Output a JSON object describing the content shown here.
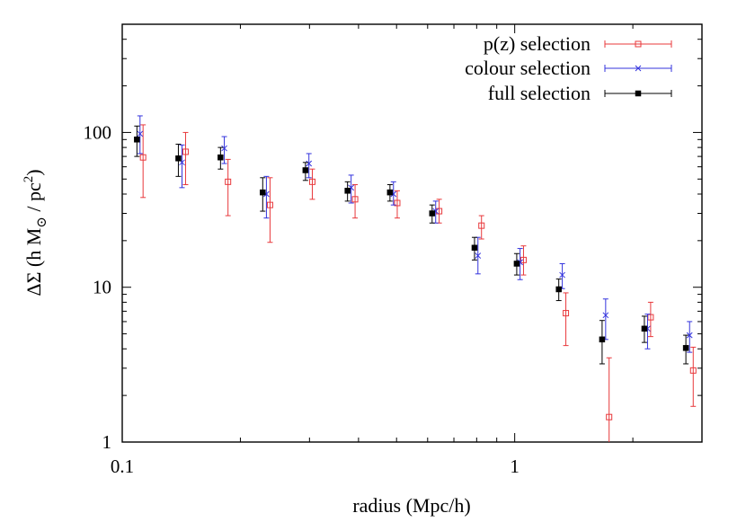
{
  "chart_data": {
    "type": "scatter",
    "x_scale": "log",
    "y_scale": "log",
    "xlim": [
      0.1,
      3.0
    ],
    "ylim": [
      1,
      500
    ],
    "xlabel": "radius (Mpc/h)",
    "ylabel": {
      "prefix": "ΔΣ (h M",
      "sub": "⊙",
      "middle": " / pc",
      "sup": "2",
      "suffix": ")"
    },
    "x_ticks": [
      {
        "value": 0.1,
        "label": "0.1"
      },
      {
        "value": 1,
        "label": "1"
      }
    ],
    "y_ticks": [
      {
        "value": 1,
        "label": "1"
      },
      {
        "value": 10,
        "label": "10"
      },
      {
        "value": 100,
        "label": "100"
      }
    ],
    "legend_position": "top-right",
    "series": [
      {
        "name": "p(z) selection",
        "color": "#e8383b",
        "marker": "open-square",
        "points": [
          {
            "x": 0.113,
            "y": 69,
            "lo": 38,
            "hi": 112
          },
          {
            "x": 0.145,
            "y": 75,
            "lo": 46,
            "hi": 100
          },
          {
            "x": 0.186,
            "y": 48,
            "lo": 29,
            "hi": 67
          },
          {
            "x": 0.238,
            "y": 34,
            "lo": 19.5,
            "hi": 51
          },
          {
            "x": 0.305,
            "y": 48,
            "lo": 37,
            "hi": 58
          },
          {
            "x": 0.392,
            "y": 37,
            "lo": 28,
            "hi": 46
          },
          {
            "x": 0.502,
            "y": 35,
            "lo": 28,
            "hi": 42
          },
          {
            "x": 0.642,
            "y": 31,
            "lo": 26,
            "hi": 37
          },
          {
            "x": 0.823,
            "y": 25,
            "lo": 20.5,
            "hi": 29
          },
          {
            "x": 1.053,
            "y": 15,
            "lo": 12,
            "hi": 18.5
          },
          {
            "x": 1.35,
            "y": 6.8,
            "lo": 4.2,
            "hi": 9.2
          },
          {
            "x": 1.74,
            "y": 1.45,
            "lo": 0.9,
            "hi": 3.5
          },
          {
            "x": 2.22,
            "y": 6.4,
            "lo": 4.8,
            "hi": 8.0
          },
          {
            "x": 2.85,
            "y": 2.9,
            "lo": 1.7,
            "hi": 4.1
          }
        ]
      },
      {
        "name": "colour selection",
        "color": "#3333dd",
        "marker": "cross",
        "points": [
          {
            "x": 0.111,
            "y": 98,
            "lo": 73,
            "hi": 128
          },
          {
            "x": 0.142,
            "y": 64,
            "lo": 44,
            "hi": 83
          },
          {
            "x": 0.182,
            "y": 79,
            "lo": 63,
            "hi": 94
          },
          {
            "x": 0.233,
            "y": 40,
            "lo": 28,
            "hi": 52
          },
          {
            "x": 0.299,
            "y": 63,
            "lo": 51,
            "hi": 73
          },
          {
            "x": 0.383,
            "y": 44,
            "lo": 35,
            "hi": 53
          },
          {
            "x": 0.491,
            "y": 40,
            "lo": 34,
            "hi": 48
          },
          {
            "x": 0.629,
            "y": 31,
            "lo": 26,
            "hi": 36
          },
          {
            "x": 0.806,
            "y": 16,
            "lo": 12.2,
            "hi": 21
          },
          {
            "x": 1.032,
            "y": 14.5,
            "lo": 11.2,
            "hi": 17.8
          },
          {
            "x": 1.322,
            "y": 12,
            "lo": 9.8,
            "hi": 14.2
          },
          {
            "x": 1.705,
            "y": 6.6,
            "lo": 4.6,
            "hi": 8.4
          },
          {
            "x": 2.18,
            "y": 5.4,
            "lo": 4.0,
            "hi": 6.7
          },
          {
            "x": 2.79,
            "y": 4.9,
            "lo": 3.8,
            "hi": 6.0
          }
        ]
      },
      {
        "name": "full selection",
        "color": "#000000",
        "marker": "filled-square",
        "points": [
          {
            "x": 0.109,
            "y": 90,
            "lo": 70,
            "hi": 110
          },
          {
            "x": 0.139,
            "y": 68,
            "lo": 52,
            "hi": 84
          },
          {
            "x": 0.178,
            "y": 69,
            "lo": 58,
            "hi": 80
          },
          {
            "x": 0.228,
            "y": 41,
            "lo": 31,
            "hi": 51
          },
          {
            "x": 0.293,
            "y": 57,
            "lo": 49,
            "hi": 64
          },
          {
            "x": 0.375,
            "y": 42,
            "lo": 36,
            "hi": 48
          },
          {
            "x": 0.481,
            "y": 41,
            "lo": 36,
            "hi": 46
          },
          {
            "x": 0.616,
            "y": 30,
            "lo": 26,
            "hi": 34
          },
          {
            "x": 0.79,
            "y": 18,
            "lo": 15,
            "hi": 21
          },
          {
            "x": 1.012,
            "y": 14.2,
            "lo": 12,
            "hi": 16.5
          },
          {
            "x": 1.295,
            "y": 9.7,
            "lo": 8.2,
            "hi": 11.3
          },
          {
            "x": 1.67,
            "y": 4.6,
            "lo": 3.2,
            "hi": 6.1
          },
          {
            "x": 2.14,
            "y": 5.4,
            "lo": 4.4,
            "hi": 6.5
          },
          {
            "x": 2.73,
            "y": 4.05,
            "lo": 3.2,
            "hi": 4.9
          }
        ]
      }
    ]
  }
}
